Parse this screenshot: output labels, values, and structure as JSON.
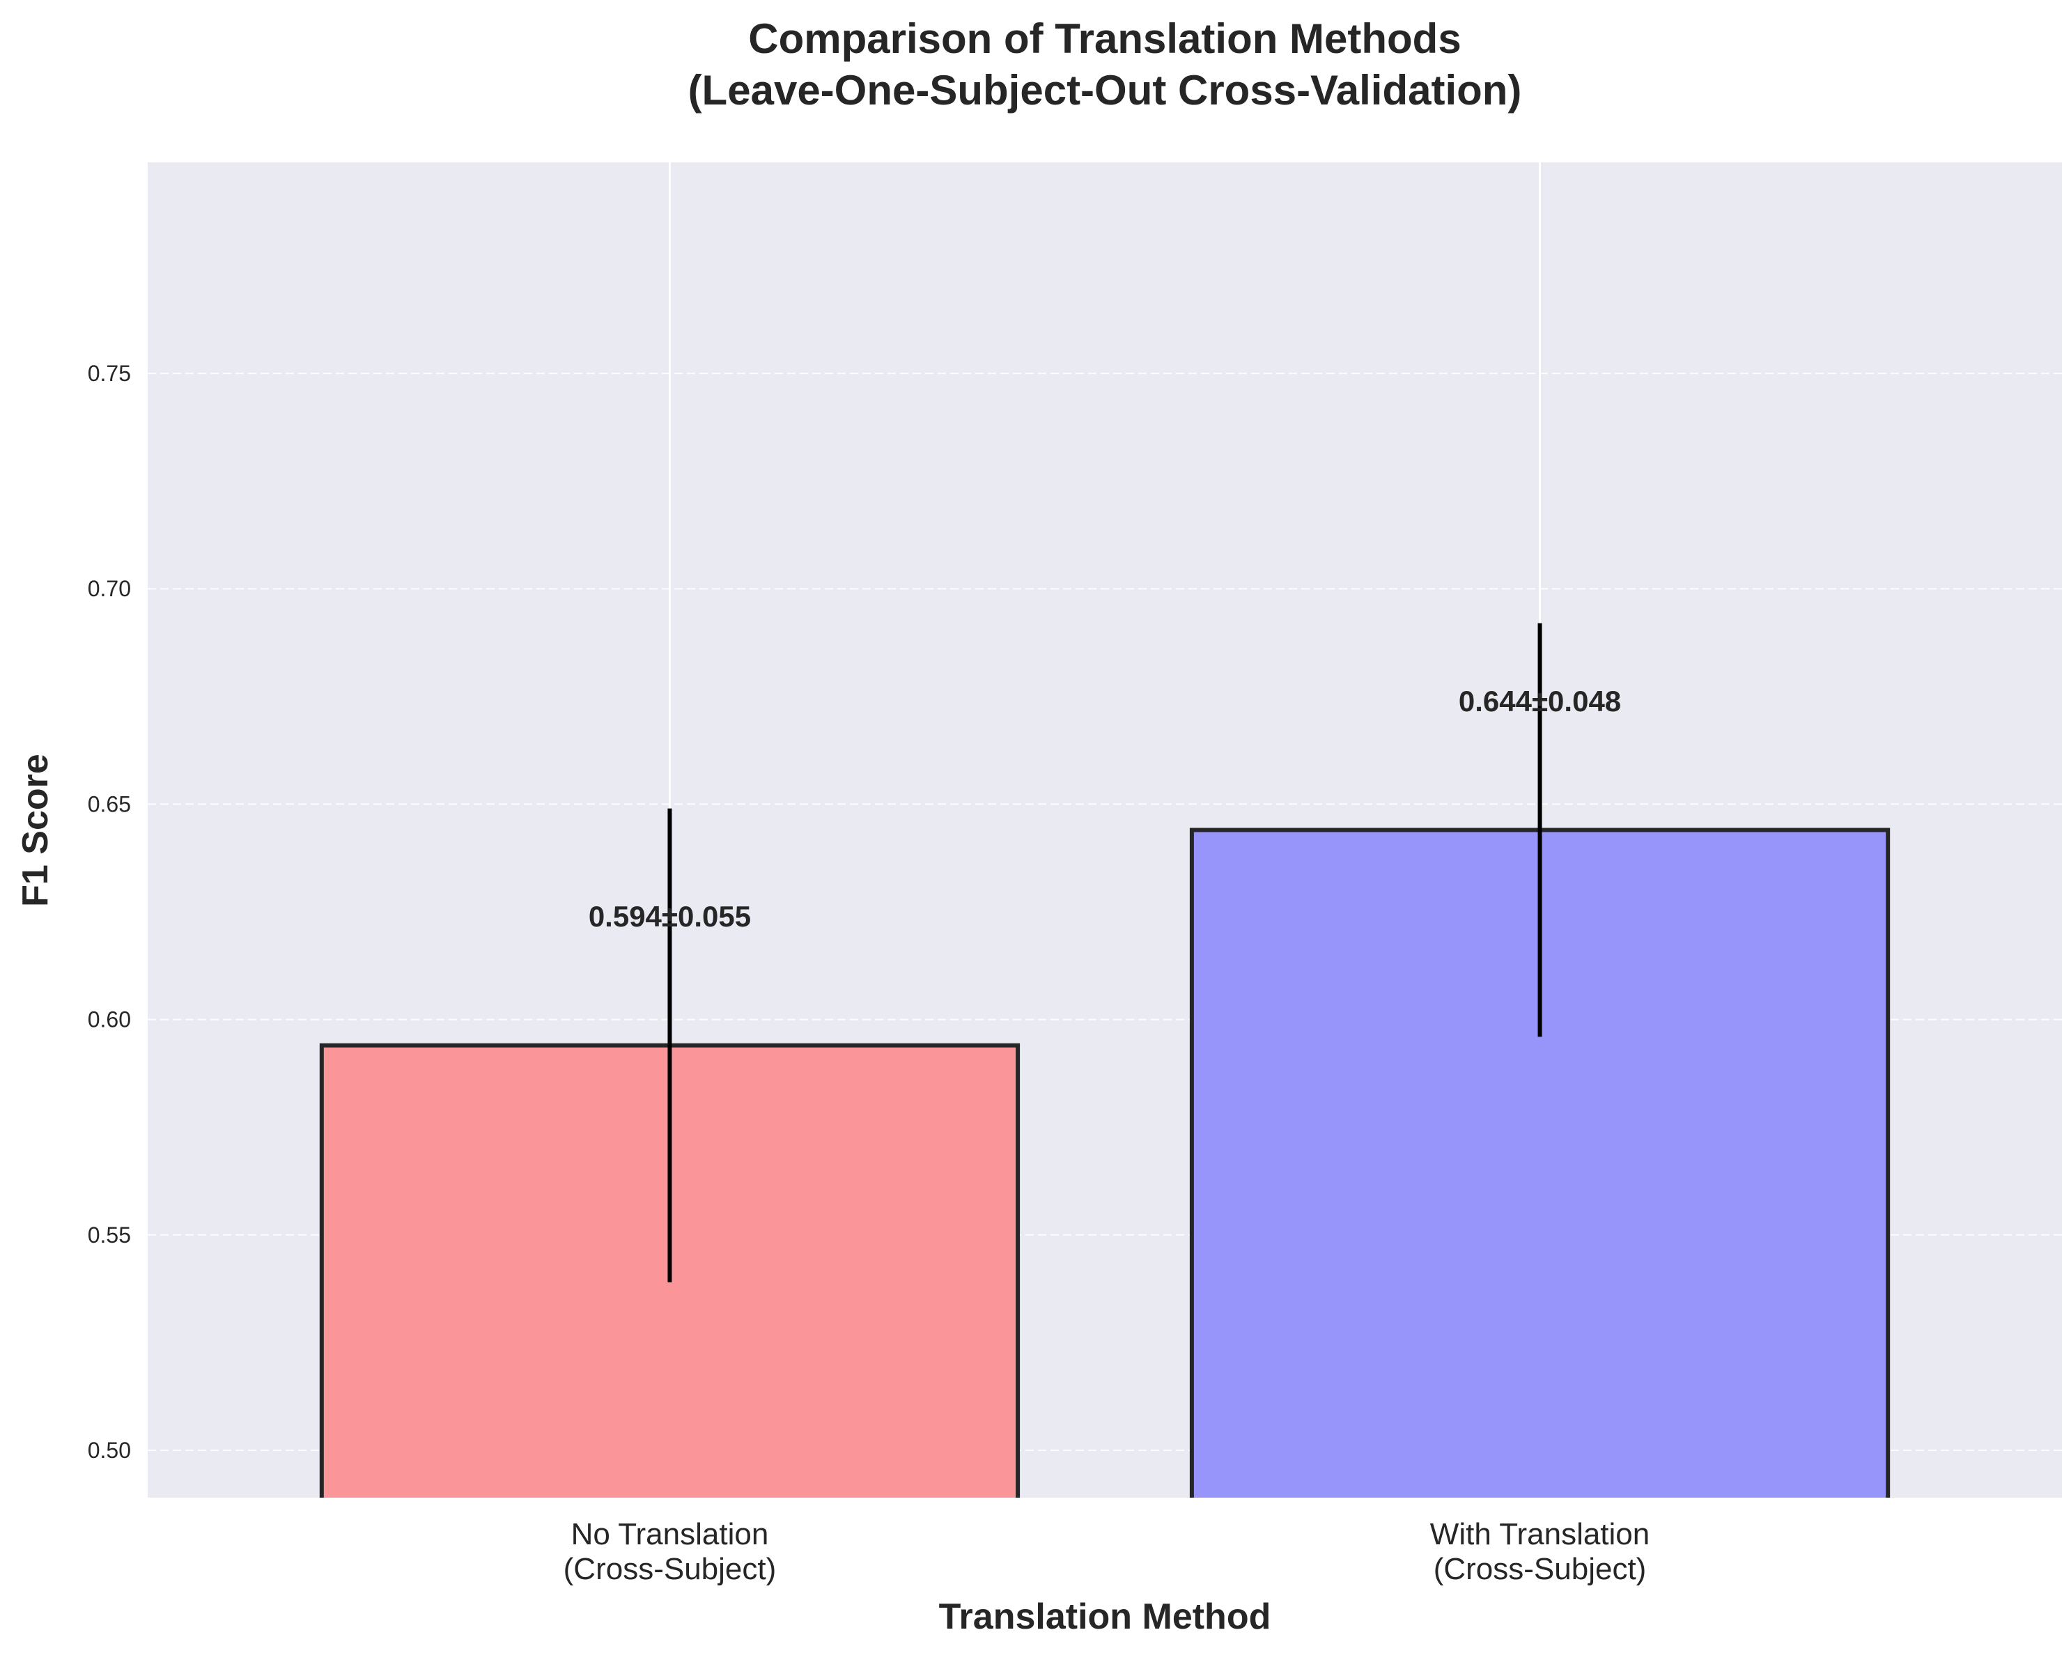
{
  "chart_data": {
    "type": "bar",
    "title_lines": [
      "Comparison of Translation Methods",
      "(Leave-One-Subject-Out Cross-Validation)"
    ],
    "xlabel": "Translation Method",
    "ylabel": "F1 Score",
    "categories": [
      [
        "No Translation",
        "(Cross-Subject)"
      ],
      [
        "With Translation",
        "(Cross-Subject)"
      ]
    ],
    "values": [
      0.594,
      0.644
    ],
    "errors": [
      0.055,
      0.048
    ],
    "data_labels": [
      "0.594±0.055",
      "0.644±0.048"
    ],
    "colors": [
      "#fa9699",
      "#9795fa"
    ],
    "ylim": [
      0.489,
      0.799
    ],
    "yticks": [
      0.5,
      0.55,
      0.6,
      0.65,
      0.7,
      0.75
    ],
    "ytick_labels": [
      "0.50",
      "0.55",
      "0.60",
      "0.65",
      "0.70",
      "0.75"
    ],
    "grid": true,
    "background": "#eaeaf2"
  }
}
